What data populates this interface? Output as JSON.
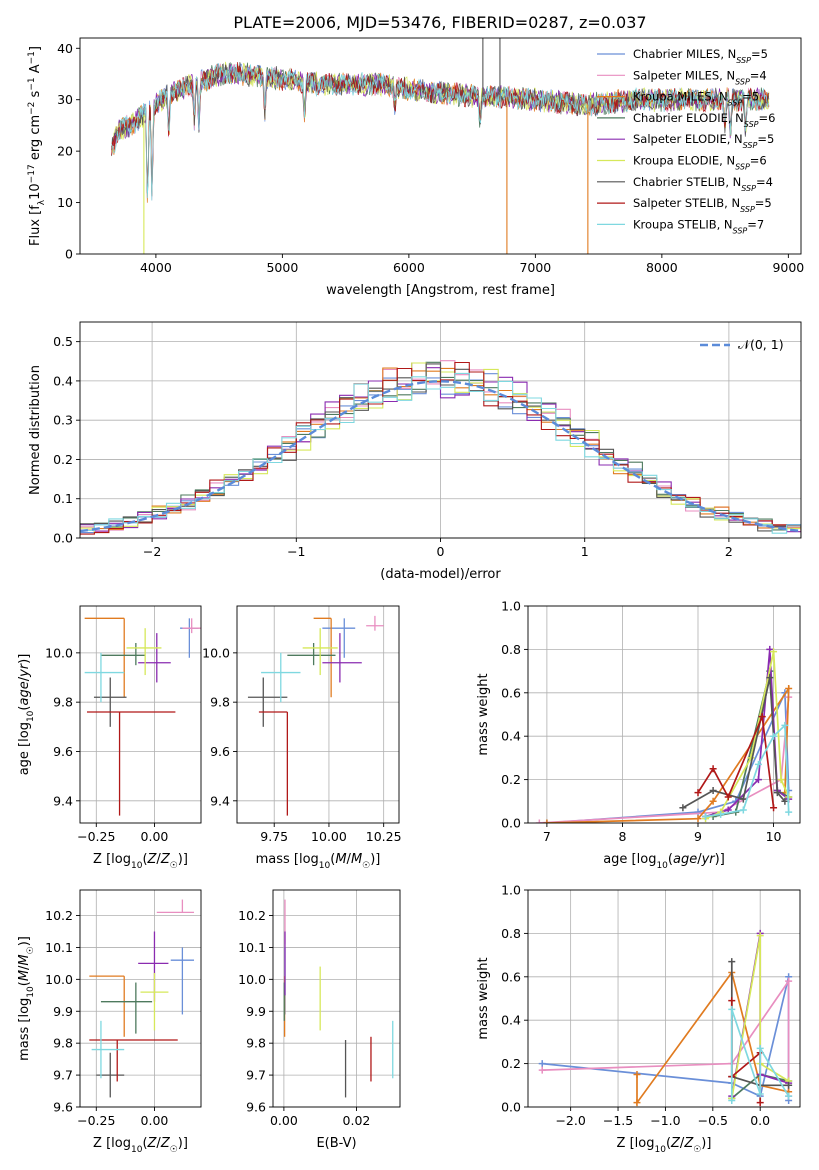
{
  "figure_title": "PLATE=2006, MJD=53476, FIBERID=0287, z=0.037",
  "models": [
    {
      "label": "Chabrier MILES, N_SSP=5",
      "color": "#6a8fd8"
    },
    {
      "label": "Salpeter MILES, N_SSP=4",
      "color": "#e88ec0"
    },
    {
      "label": "Kroupa MILES, N_SSP=5",
      "color": "#e07b20"
    },
    {
      "label": "Chabrier ELODIE, N_SSP=6",
      "color": "#4e7a5e"
    },
    {
      "label": "Salpeter ELODIE, N_SSP=5",
      "color": "#8a2bb0"
    },
    {
      "label": "Kroupa ELODIE, N_SSP=6",
      "color": "#d6e85a"
    },
    {
      "label": "Chabrier STELIB, N_SSP=4",
      "color": "#555555"
    },
    {
      "label": "Salpeter STELIB, N_SSP=5",
      "color": "#b01818"
    },
    {
      "label": "Kroupa STELIB, N_SSP=7",
      "color": "#7fd8e0"
    }
  ],
  "chart_data": [
    {
      "id": "spectrum",
      "type": "line",
      "xlabel": "wavelength [Angstrom, rest frame]",
      "ylabel": "Flux [f_λ 10^-17 erg cm^-2 s^-1 A^-1]",
      "xlim": [
        3400,
        9100
      ],
      "ylim": [
        0,
        42
      ],
      "xticks": [
        4000,
        5000,
        6000,
        7000,
        8000,
        9000
      ],
      "yticks": [
        0,
        10,
        20,
        30,
        40
      ],
      "grid": false,
      "legend": "top-right",
      "continuum": [
        [
          3650,
          20
        ],
        [
          3700,
          24
        ],
        [
          3800,
          25
        ],
        [
          3900,
          27
        ],
        [
          4000,
          29
        ],
        [
          4100,
          31
        ],
        [
          4200,
          32
        ],
        [
          4300,
          33
        ],
        [
          4400,
          34
        ],
        [
          4500,
          35
        ],
        [
          4700,
          35
        ],
        [
          5000,
          34
        ],
        [
          5300,
          33
        ],
        [
          5500,
          33
        ],
        [
          5800,
          33
        ],
        [
          6000,
          32
        ],
        [
          6200,
          31.5
        ],
        [
          6400,
          31
        ],
        [
          6600,
          30.5
        ],
        [
          6800,
          30.5
        ],
        [
          7000,
          30
        ],
        [
          7200,
          29.5
        ],
        [
          7400,
          29
        ],
        [
          7600,
          29.5
        ],
        [
          7800,
          30
        ],
        [
          8000,
          30
        ],
        [
          8200,
          30
        ],
        [
          8500,
          30
        ],
        [
          8850,
          30
        ]
      ],
      "absorption": [
        [
          3934,
          9
        ],
        [
          3969,
          11
        ],
        [
          4102,
          23
        ],
        [
          4304,
          26
        ],
        [
          4340,
          25
        ],
        [
          4861,
          27
        ],
        [
          5175,
          26
        ],
        [
          5890,
          28
        ],
        [
          6563,
          25
        ],
        [
          8498,
          24
        ],
        [
          8542,
          22
        ],
        [
          8662,
          23
        ]
      ],
      "spikes": [
        {
          "x": 3905,
          "y": 0
        },
        {
          "x": 6775,
          "y": 0
        },
        {
          "x": 6720,
          "y": 45
        },
        {
          "x": 6585,
          "y": 45
        },
        {
          "x": 7415,
          "y": 0
        }
      ]
    },
    {
      "id": "residual-histogram",
      "type": "bar",
      "xlabel": "(data-model)/error",
      "ylabel": "Normed distribution",
      "xlim": [
        -2.5,
        2.5
      ],
      "ylim": [
        0,
        0.55
      ],
      "xticks": [
        -2,
        -1,
        0,
        1,
        2
      ],
      "xtick_labels": [
        "−2",
        "−1",
        "0",
        "1",
        "2"
      ],
      "yticks": [
        0,
        0.1,
        0.2,
        0.3,
        0.4,
        0.5
      ],
      "grid": true,
      "legend": "top-right",
      "reference_curve": "𝒩(0, 1)",
      "reference_color": "#5b8bd9",
      "bin_width": 0.1
    },
    {
      "id": "age-vs-metallicity",
      "type": "scatter",
      "xlabel": "Z [log10(Z/Z☉)]",
      "ylabel": "age [log10(age/yr)]",
      "xlim": [
        -0.32,
        0.2
      ],
      "ylim": [
        9.31,
        10.19
      ],
      "xticks": [
        -0.25,
        0.0
      ],
      "xtick_labels": [
        "−0.25",
        "0.00"
      ],
      "yticks": [
        9.4,
        9.6,
        9.8,
        10.0
      ],
      "grid": true,
      "points": [
        {
          "x": 0.15,
          "y": 10.1,
          "xerr": [
            0.04,
            0.04
          ],
          "yerr": [
            0.12,
            0.04
          ]
        },
        {
          "x": 0.16,
          "y": 10.1,
          "xerr": [
            0.04,
            0.04
          ],
          "yerr": [
            0.02,
            0.04
          ]
        },
        {
          "x": -0.13,
          "y": 10.14,
          "xerr": [
            0.17,
            0.0
          ],
          "yerr": [
            0.32,
            0.0
          ]
        },
        {
          "x": -0.08,
          "y": 9.99,
          "xerr": [
            0.15,
            0.04
          ],
          "yerr": [
            0.04,
            0.05
          ]
        },
        {
          "x": 0.01,
          "y": 9.96,
          "xerr": [
            0.08,
            0.06
          ],
          "yerr": [
            0.08,
            0.12
          ]
        },
        {
          "x": -0.04,
          "y": 10.02,
          "xerr": [
            0.08,
            0.07
          ],
          "yerr": [
            0.11,
            0.08
          ]
        },
        {
          "x": -0.19,
          "y": 9.82,
          "xerr": [
            0.07,
            0.07
          ],
          "yerr": [
            0.12,
            0.08
          ]
        },
        {
          "x": -0.15,
          "y": 9.76,
          "xerr": [
            0.14,
            0.24
          ],
          "yerr": [
            0.42,
            0.0
          ]
        },
        {
          "x": -0.23,
          "y": 9.92,
          "xerr": [
            0.07,
            0.1
          ],
          "yerr": [
            0.12,
            0.08
          ]
        }
      ]
    },
    {
      "id": "age-vs-mass",
      "type": "scatter",
      "xlabel": "mass [log10(M/M☉)]",
      "ylabel": "",
      "xlim": [
        9.58,
        10.32
      ],
      "ylim": [
        9.31,
        10.19
      ],
      "xticks": [
        9.75,
        10.0,
        10.25
      ],
      "xtick_labels": [
        "9.75",
        "10.00",
        "10.25"
      ],
      "yticks": [
        9.4,
        9.6,
        9.8,
        10.0
      ],
      "grid": true,
      "points": [
        {
          "x": 10.07,
          "y": 10.1,
          "xerr": [
            0.1,
            0.05
          ],
          "yerr": [
            0.12,
            0.04
          ]
        },
        {
          "x": 10.21,
          "y": 10.11,
          "xerr": [
            0.04,
            0.04
          ],
          "yerr": [
            0.02,
            0.04
          ]
        },
        {
          "x": 10.01,
          "y": 10.14,
          "xerr": [
            0.08,
            0.0
          ],
          "yerr": [
            0.32,
            0.0
          ]
        },
        {
          "x": 9.93,
          "y": 9.99,
          "xerr": [
            0.12,
            0.1
          ],
          "yerr": [
            0.04,
            0.05
          ]
        },
        {
          "x": 10.05,
          "y": 9.96,
          "xerr": [
            0.08,
            0.1
          ],
          "yerr": [
            0.08,
            0.12
          ]
        },
        {
          "x": 9.96,
          "y": 10.02,
          "xerr": [
            0.08,
            0.08
          ],
          "yerr": [
            0.11,
            0.08
          ]
        },
        {
          "x": 9.7,
          "y": 9.82,
          "xerr": [
            0.07,
            0.11
          ],
          "yerr": [
            0.12,
            0.08
          ]
        },
        {
          "x": 9.81,
          "y": 9.76,
          "xerr": [
            0.13,
            0.0
          ],
          "yerr": [
            0.42,
            0.0
          ]
        },
        {
          "x": 9.78,
          "y": 9.92,
          "xerr": [
            0.09,
            0.09
          ],
          "yerr": [
            0.12,
            0.08
          ]
        }
      ]
    },
    {
      "id": "mass-weight-vs-age",
      "type": "line",
      "xlabel": "age [log10(age/yr)]",
      "ylabel": "mass weight",
      "xlim": [
        6.75,
        10.35
      ],
      "ylim": [
        0,
        1.0
      ],
      "xticks": [
        7,
        8,
        9,
        10
      ],
      "yticks": [
        0.0,
        0.2,
        0.4,
        0.6,
        0.8,
        1.0
      ],
      "grid": true,
      "series": [
        {
          "x": [
            7.0,
            9.0,
            9.5,
            10.15,
            10.2
          ],
          "y": [
            0.0,
            0.05,
            0.1,
            0.6,
            0.15
          ]
        },
        {
          "x": [
            6.9,
            9.3,
            10.1,
            10.2
          ],
          "y": [
            0.0,
            0.05,
            0.2,
            0.58
          ]
        },
        {
          "x": [
            7.0,
            9.0,
            9.2,
            10.2,
            10.15
          ],
          "y": [
            0.0,
            0.02,
            0.1,
            0.62,
            0.14
          ]
        },
        {
          "x": [
            9.2,
            9.5,
            9.95,
            10.05,
            10.2
          ],
          "y": [
            0.03,
            0.05,
            0.7,
            0.15,
            0.12
          ]
        },
        {
          "x": [
            9.1,
            9.4,
            9.8,
            9.95,
            10.05,
            10.2
          ],
          "y": [
            0.03,
            0.06,
            0.2,
            0.8,
            0.15,
            0.11
          ]
        },
        {
          "x": [
            9.1,
            9.3,
            9.7,
            10.0,
            10.1,
            10.2
          ],
          "y": [
            0.02,
            0.05,
            0.3,
            0.79,
            0.2,
            0.12
          ]
        },
        {
          "x": [
            8.8,
            9.2,
            9.6,
            9.95,
            10.05,
            10.15
          ],
          "y": [
            0.07,
            0.15,
            0.11,
            0.67,
            0.14,
            0.1
          ]
        },
        {
          "x": [
            9.0,
            9.2,
            9.4,
            9.85,
            10.0
          ],
          "y": [
            0.14,
            0.25,
            0.12,
            0.49,
            0.07
          ]
        },
        {
          "x": [
            9.1,
            9.3,
            9.6,
            9.8,
            10.0,
            10.15,
            10.2
          ],
          "y": [
            0.03,
            0.04,
            0.06,
            0.27,
            0.4,
            0.45,
            0.05
          ]
        }
      ]
    },
    {
      "id": "mass-vs-metallicity",
      "type": "scatter",
      "xlabel": "Z [log10(Z/Z☉)]",
      "ylabel": "mass [log10(M/M☉)]",
      "xlim": [
        -0.32,
        0.2
      ],
      "ylim": [
        9.6,
        10.28
      ],
      "xticks": [
        -0.25,
        0.0
      ],
      "xtick_labels": [
        "−0.25",
        "0.00"
      ],
      "yticks": [
        9.6,
        9.7,
        9.8,
        9.9,
        10.0,
        10.1,
        10.2
      ],
      "grid": true,
      "points": [
        {
          "x": 0.12,
          "y": 10.06,
          "xerr": [
            0.05,
            0.05
          ],
          "yerr": [
            0.17,
            0.04
          ]
        },
        {
          "x": 0.12,
          "y": 10.21,
          "xerr": [
            0.11,
            0.05
          ],
          "yerr": [
            0.0,
            0.04
          ]
        },
        {
          "x": -0.13,
          "y": 10.01,
          "xerr": [
            0.15,
            0.0
          ],
          "yerr": [
            0.19,
            0.0
          ]
        },
        {
          "x": -0.08,
          "y": 9.93,
          "xerr": [
            0.15,
            0.07
          ],
          "yerr": [
            0.1,
            0.06
          ]
        },
        {
          "x": 0.0,
          "y": 10.05,
          "xerr": [
            0.07,
            0.06
          ],
          "yerr": [
            0.12,
            0.1
          ]
        },
        {
          "x": 0.0,
          "y": 9.96,
          "xerr": [
            0.06,
            0.06
          ],
          "yerr": [
            0.12,
            0.06
          ]
        },
        {
          "x": -0.19,
          "y": 9.7,
          "xerr": [
            0.06,
            0.06
          ],
          "yerr": [
            0.07,
            0.07
          ]
        },
        {
          "x": -0.16,
          "y": 9.81,
          "xerr": [
            0.12,
            0.26
          ],
          "yerr": [
            0.13,
            0.0
          ]
        },
        {
          "x": -0.23,
          "y": 9.78,
          "xerr": [
            0.04,
            0.1
          ],
          "yerr": [
            0.09,
            0.09
          ]
        }
      ]
    },
    {
      "id": "mass-vs-ebv",
      "type": "scatter",
      "xlabel": "E(B-V)",
      "ylabel": "",
      "xlim": [
        -0.003,
        0.032
      ],
      "ylim": [
        9.6,
        10.28
      ],
      "xticks": [
        0.0,
        0.02
      ],
      "xtick_labels": [
        "0.00",
        "0.02"
      ],
      "yticks": [
        9.6,
        9.7,
        9.8,
        9.9,
        10.0,
        10.1,
        10.2
      ],
      "grid": true,
      "points": [
        {
          "x": 0.0003,
          "y": 10.06,
          "yerr": [
            0.17,
            0.04
          ]
        },
        {
          "x": 0.0003,
          "y": 10.21,
          "yerr": [
            0.1,
            0.04
          ]
        },
        {
          "x": 0.0002,
          "y": 10.01,
          "yerr": [
            0.19,
            0.0
          ]
        },
        {
          "x": 0.0001,
          "y": 9.93,
          "yerr": [
            0.06,
            0.06
          ]
        },
        {
          "x": 0.0003,
          "y": 10.05,
          "yerr": [
            0.1,
            0.1
          ]
        },
        {
          "x": 0.01,
          "y": 9.96,
          "yerr": [
            0.12,
            0.08
          ]
        },
        {
          "x": 0.017,
          "y": 9.7,
          "yerr": [
            0.07,
            0.11
          ]
        },
        {
          "x": 0.024,
          "y": 9.75,
          "yerr": [
            0.07,
            0.07
          ]
        },
        {
          "x": 0.03,
          "y": 9.78,
          "yerr": [
            0.09,
            0.09
          ]
        }
      ]
    },
    {
      "id": "mass-weight-vs-metallicity",
      "type": "line",
      "xlabel": "Z [log10(Z/Z☉)]",
      "ylabel": "mass weight",
      "xlim": [
        -2.45,
        0.42
      ],
      "ylim": [
        0,
        1.0
      ],
      "xticks": [
        -2.0,
        -1.5,
        -1.0,
        -0.5,
        0.0
      ],
      "xtick_labels": [
        "−2.0",
        "−1.5",
        "−1.0",
        "−0.5",
        "0.0"
      ],
      "yticks": [
        0.0,
        0.2,
        0.4,
        0.6,
        0.8,
        1.0
      ],
      "grid": true,
      "series": [
        {
          "x": [
            -2.3,
            -0.3,
            0.0,
            0.3,
            0.3
          ],
          "y": [
            0.2,
            0.11,
            0.05,
            0.6,
            0.03
          ]
        },
        {
          "x": [
            -2.3,
            -0.3,
            0.3,
            0.3
          ],
          "y": [
            0.17,
            0.2,
            0.58,
            0.05
          ]
        },
        {
          "x": [
            -1.3,
            -1.3,
            -0.3,
            0.0,
            0.3
          ],
          "y": [
            0.15,
            0.02,
            0.62,
            0.1,
            0.07
          ]
        },
        {
          "x": [
            -0.3,
            0.0,
            0.3
          ],
          "y": [
            0.04,
            0.15,
            0.12
          ]
        },
        {
          "x": [
            -0.3,
            0.0,
            0.0,
            0.3
          ],
          "y": [
            0.05,
            0.8,
            0.15,
            0.11
          ]
        },
        {
          "x": [
            -0.3,
            0.0,
            0.0,
            0.3
          ],
          "y": [
            0.04,
            0.79,
            0.2,
            0.12
          ]
        },
        {
          "x": [
            -0.3,
            -0.3,
            0.0,
            0.3
          ],
          "y": [
            0.67,
            0.14,
            0.1,
            0.1
          ]
        },
        {
          "x": [
            -0.3,
            -0.3,
            0.0,
            0.0
          ],
          "y": [
            0.49,
            0.14,
            0.25,
            0.02
          ]
        },
        {
          "x": [
            -0.3,
            -0.3,
            0.0,
            0.0,
            0.3
          ],
          "y": [
            0.03,
            0.45,
            0.06,
            0.27,
            0.05
          ]
        }
      ]
    }
  ]
}
